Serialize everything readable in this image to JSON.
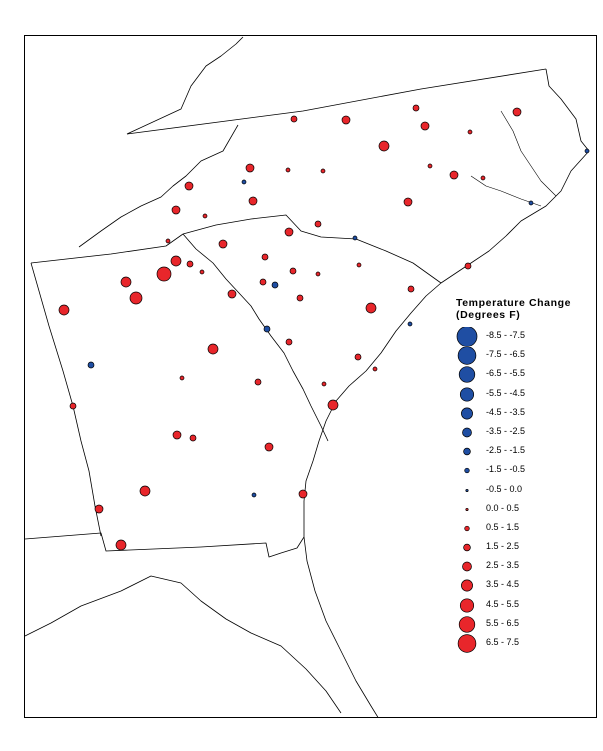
{
  "legend": {
    "title_line1": "Temperature Change",
    "title_line2": "(Degrees F)",
    "classes": [
      {
        "label": "-8.5 - -7.5",
        "color": "#1f4ea3",
        "level": 17
      },
      {
        "label": "-7.5 - -6.5",
        "color": "#1f4ea3",
        "level": 16
      },
      {
        "label": "-6.5 - -5.5",
        "color": "#1f4ea3",
        "level": 15
      },
      {
        "label": "-5.5 - -4.5",
        "color": "#1f4ea3",
        "level": 14
      },
      {
        "label": "-4.5 - -3.5",
        "color": "#1f4ea3",
        "level": 13
      },
      {
        "label": "-3.5 - -2.5",
        "color": "#1f4ea3",
        "level": 12
      },
      {
        "label": "-2.5 - -1.5",
        "color": "#1f4ea3",
        "level": 11
      },
      {
        "label": "-1.5 - -0.5",
        "color": "#1f4ea3",
        "level": 10
      },
      {
        "label": "-0.5 - 0.0",
        "color": "#1f4ea3",
        "level": 9
      },
      {
        "label": "0.0 - 0.5",
        "color": "#e8262b",
        "level": 9
      },
      {
        "label": "0.5 - 1.5",
        "color": "#e8262b",
        "level": 10
      },
      {
        "label": "1.5 - 2.5",
        "color": "#e8262b",
        "level": 11
      },
      {
        "label": "2.5 - 3.5",
        "color": "#e8262b",
        "level": 12
      },
      {
        "label": "3.5 - 4.5",
        "color": "#e8262b",
        "level": 13
      },
      {
        "label": "4.5 - 5.5",
        "color": "#e8262b",
        "level": 14
      },
      {
        "label": "5.5 - 6.5",
        "color": "#e8262b",
        "level": 15
      },
      {
        "label": "6.5 - 7.5",
        "color": "#e8262b",
        "level": 16
      }
    ]
  },
  "colors": {
    "warming": "#e8262b",
    "cooling": "#1f4ea3",
    "outline": "#000000",
    "background": "#ffffff"
  }
}
